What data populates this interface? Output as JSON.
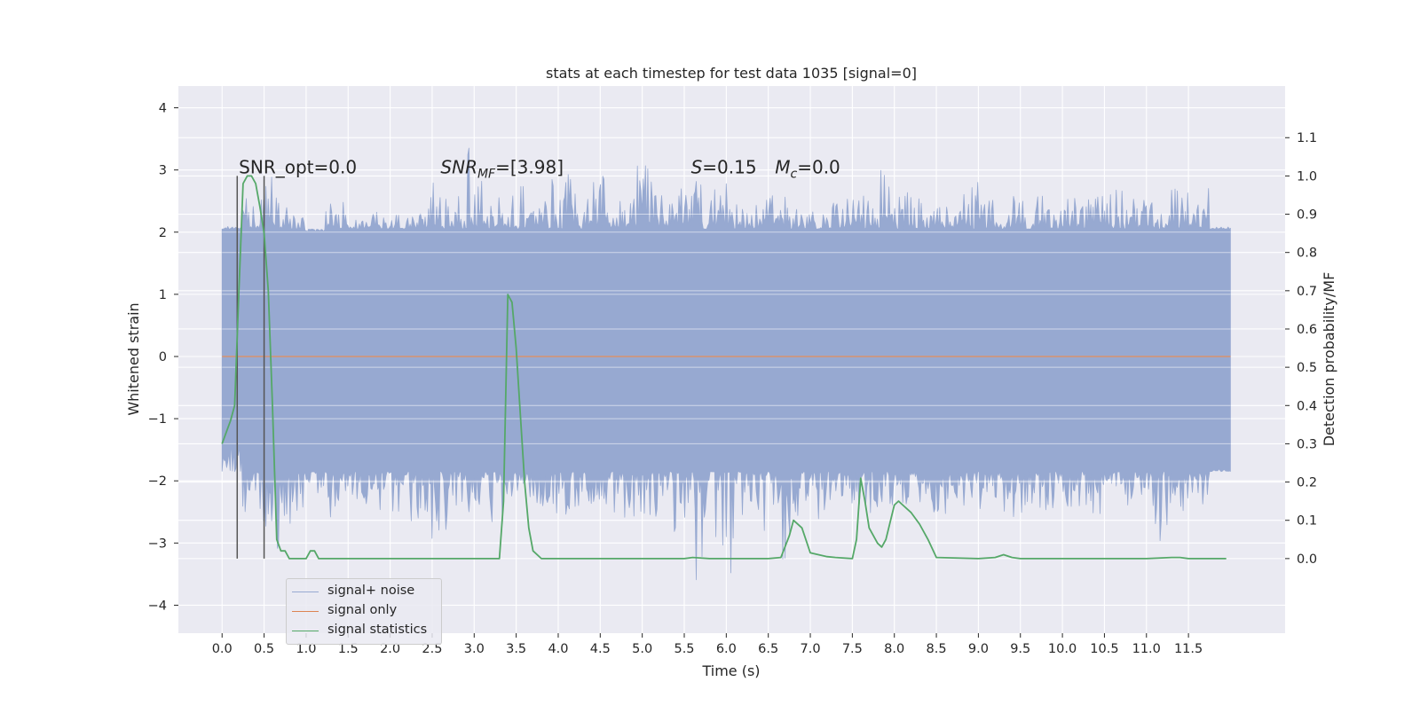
{
  "chart_data": {
    "type": "line",
    "title": "stats at each timestep for test data 1035 [signal=0]",
    "xlabel": "Time (s)",
    "ylabel": "Whitened strain",
    "y2label": "Detection probability/MF",
    "xlim": [
      -0.52,
      12.65
    ],
    "ylim": [
      -4.45,
      4.35
    ],
    "y2lim": [
      -0.195,
      1.235
    ],
    "xticks": [
      "0.0",
      "0.5",
      "1.0",
      "1.5",
      "2.0",
      "2.5",
      "3.0",
      "3.5",
      "4.0",
      "4.5",
      "5.0",
      "5.5",
      "6.0",
      "6.5",
      "7.0",
      "7.5",
      "8.0",
      "8.5",
      "9.0",
      "9.5",
      "10.0",
      "10.5",
      "11.0",
      "11.5"
    ],
    "yticks": [
      "4",
      "3",
      "2",
      "1",
      "0",
      "−1",
      "−2",
      "−3",
      "−4"
    ],
    "y2ticks": [
      "1.1",
      "1.0",
      "0.9",
      "0.8",
      "0.7",
      "0.6",
      "0.5",
      "0.4",
      "0.3",
      "0.2",
      "0.1",
      "0.0"
    ],
    "grid": true,
    "legend_position": "lower-left",
    "annotations": [
      {
        "text": "SNR_opt=0.0",
        "x": 0.2,
        "y2": 1.0
      },
      {
        "text_parts": [
          "SNR",
          "MF",
          "=[3.98]"
        ],
        "x": 2.6,
        "y2": 1.0
      },
      {
        "text_parts": [
          "S",
          "=0.15"
        ],
        "x": 5.58,
        "y2": 1.0
      },
      {
        "text_parts": [
          "M",
          "c",
          "=0.0"
        ],
        "x": 6.58,
        "y2": 1.0
      }
    ],
    "markers": [
      0.18,
      0.5
    ],
    "series": [
      {
        "name": "signal+ noise",
        "color": "#97a9d1",
        "duration": 12.0,
        "core_upper": 1.8,
        "core_lower": -1.6,
        "envelope_upper": [
          2.1,
          2.6,
          2.9,
          2.4,
          2.0,
          2.6,
          2.2,
          2.4,
          2.3,
          2.3,
          2.9,
          3.4,
          3.1,
          2.6,
          2.8,
          2.5,
          3.1,
          2.7,
          2.9,
          2.5,
          3.1,
          2.6,
          2.7,
          2.9,
          2.8,
          2.5,
          2.6,
          2.7,
          2.5,
          2.6,
          2.6,
          2.6,
          3.0,
          2.7,
          2.6,
          2.5,
          2.8,
          2.6,
          2.6,
          2.6,
          2.4,
          2.6,
          2.6,
          2.7,
          2.7,
          2.5,
          2.7,
          2.8,
          2.1
        ],
        "envelope_lower": [
          -1.3,
          -2.6,
          -3.2,
          -2.7,
          -2.2,
          -2.6,
          -2.3,
          -2.5,
          -2.6,
          -2.8,
          -3.0,
          -2.5,
          -2.6,
          -2.9,
          -2.4,
          -2.4,
          -2.6,
          -2.5,
          -2.4,
          -2.7,
          -2.7,
          -3.0,
          -2.8,
          -3.6,
          -3.5,
          -2.6,
          -2.8,
          -3.3,
          -2.7,
          -2.5,
          -2.6,
          -2.6,
          -2.5,
          -2.4,
          -2.6,
          -2.6,
          -2.5,
          -2.4,
          -2.6,
          -2.5,
          -2.6,
          -2.5,
          -2.6,
          -2.6,
          -2.4,
          -3.0,
          -2.5,
          -2.4,
          -1.8
        ]
      },
      {
        "name": "signal only",
        "color": "#dd8452",
        "x": [
          0.0,
          12.0
        ],
        "y": [
          0.0,
          0.0
        ]
      },
      {
        "name": "signal statistics",
        "color": "#55a868",
        "axis": "right",
        "x": [
          0.0,
          0.1,
          0.15,
          0.2,
          0.25,
          0.3,
          0.35,
          0.4,
          0.45,
          0.5,
          0.55,
          0.6,
          0.65,
          0.7,
          0.75,
          0.8,
          0.9,
          1.0,
          1.05,
          1.1,
          1.15,
          1.2,
          1.5,
          2.0,
          2.3,
          3.0,
          3.3,
          3.35,
          3.4,
          3.45,
          3.5,
          3.6,
          3.65,
          3.7,
          3.8,
          4.0,
          5.5,
          5.6,
          5.8,
          6.5,
          6.65,
          6.75,
          6.8,
          6.9,
          7.0,
          7.2,
          7.3,
          7.5,
          7.55,
          7.6,
          7.65,
          7.7,
          7.8,
          7.85,
          7.9,
          8.0,
          8.05,
          8.1,
          8.2,
          8.3,
          8.4,
          8.5,
          9.0,
          9.2,
          9.3,
          9.4,
          9.5,
          11.0,
          11.3,
          11.4,
          11.5,
          11.95
        ],
        "y": [
          0.3,
          0.36,
          0.4,
          0.7,
          0.98,
          1.0,
          1.0,
          0.98,
          0.92,
          0.85,
          0.7,
          0.4,
          0.05,
          0.02,
          0.02,
          0.0,
          0.0,
          0.0,
          0.02,
          0.02,
          0.0,
          0.0,
          0.0,
          0.0,
          0.0,
          0.0,
          0.0,
          0.15,
          0.69,
          0.67,
          0.55,
          0.2,
          0.08,
          0.02,
          0.0,
          0.0,
          0.0,
          0.003,
          0.0,
          0.0,
          0.003,
          0.06,
          0.1,
          0.08,
          0.015,
          0.005,
          0.003,
          0.0,
          0.05,
          0.21,
          0.15,
          0.08,
          0.04,
          0.03,
          0.05,
          0.14,
          0.15,
          0.14,
          0.12,
          0.09,
          0.05,
          0.003,
          0.0,
          0.003,
          0.01,
          0.003,
          0.0,
          0.0,
          0.003,
          0.003,
          0.0,
          0.0
        ]
      }
    ]
  }
}
